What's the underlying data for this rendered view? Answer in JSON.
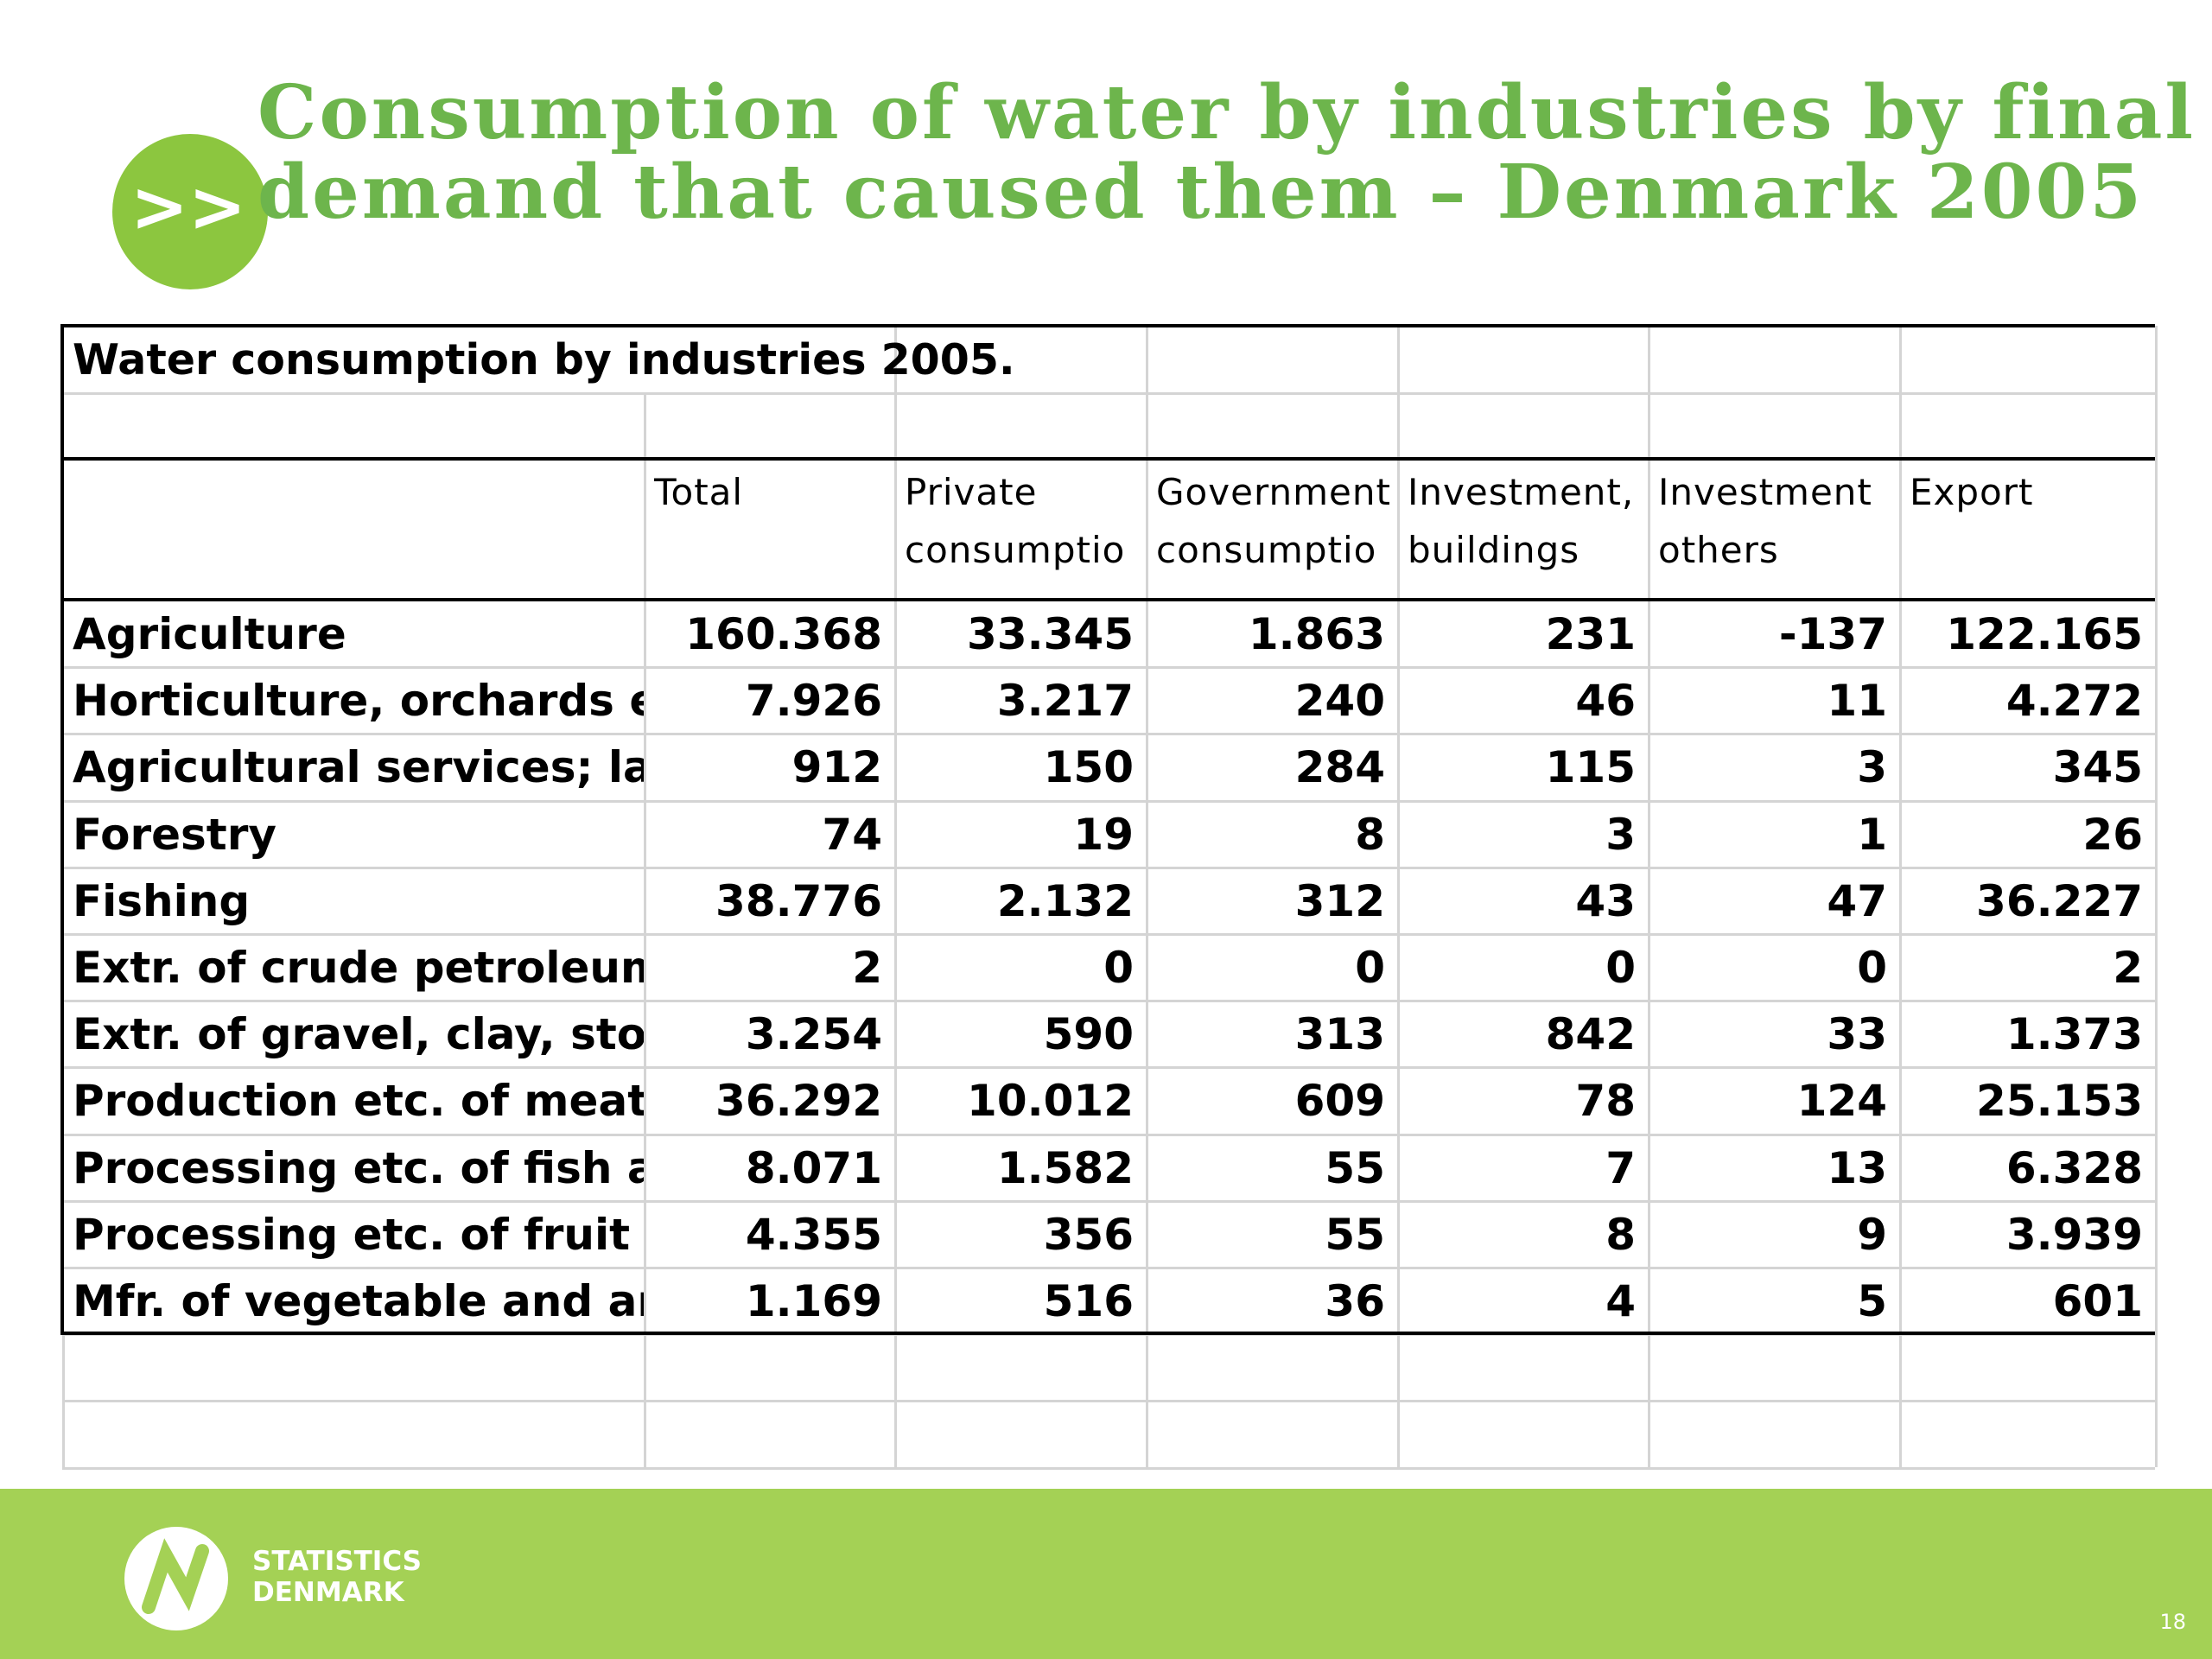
{
  "header": {
    "title_line1": "Consumption of water by industries by final",
    "title_line2": "demand that caused them – Denmark 2005"
  },
  "table": {
    "caption": "Water consumption by industries 2005.",
    "columns": [
      [
        "Total"
      ],
      [
        "Private",
        "consumptio"
      ],
      [
        "Government",
        "consumptio"
      ],
      [
        "Investment,",
        "buildings"
      ],
      [
        "Investment",
        "others"
      ],
      [
        "Export"
      ]
    ],
    "rows": [
      [
        "Agriculture",
        "160.368",
        "33.345",
        "1.863",
        "231",
        "-137",
        "122.165"
      ],
      [
        "Horticulture, orchards etc.",
        "7.926",
        "3.217",
        "240",
        "46",
        "11",
        "4.272"
      ],
      [
        "Agricultural services; lands",
        "912",
        "150",
        "284",
        "115",
        "3",
        "345"
      ],
      [
        "Forestry",
        "74",
        "19",
        "8",
        "3",
        "1",
        "26"
      ],
      [
        "Fishing",
        "38.776",
        "2.132",
        "312",
        "43",
        "47",
        "36.227"
      ],
      [
        "Extr. of crude petroleum, n",
        "2",
        "0",
        "0",
        "0",
        "0",
        "2"
      ],
      [
        "Extr. of gravel, clay, stone a",
        "3.254",
        "590",
        "313",
        "842",
        "33",
        "1.373"
      ],
      [
        "Production etc. of meat an",
        "36.292",
        "10.012",
        "609",
        "78",
        "124",
        "25.153"
      ],
      [
        "Processing etc. of fish and f",
        "8.071",
        "1.582",
        "55",
        "7",
        "13",
        "6.328"
      ],
      [
        "Processing etc. of fruit and",
        "4.355",
        "356",
        "55",
        "8",
        "9",
        "3.939"
      ],
      [
        "Mfr. of vegetable and anim",
        "1.169",
        "516",
        "36",
        "4",
        "5",
        "601"
      ]
    ]
  },
  "footer": {
    "logo_line1": "STATISTICS",
    "logo_line2": "DENMARK",
    "page_number": "18"
  }
}
